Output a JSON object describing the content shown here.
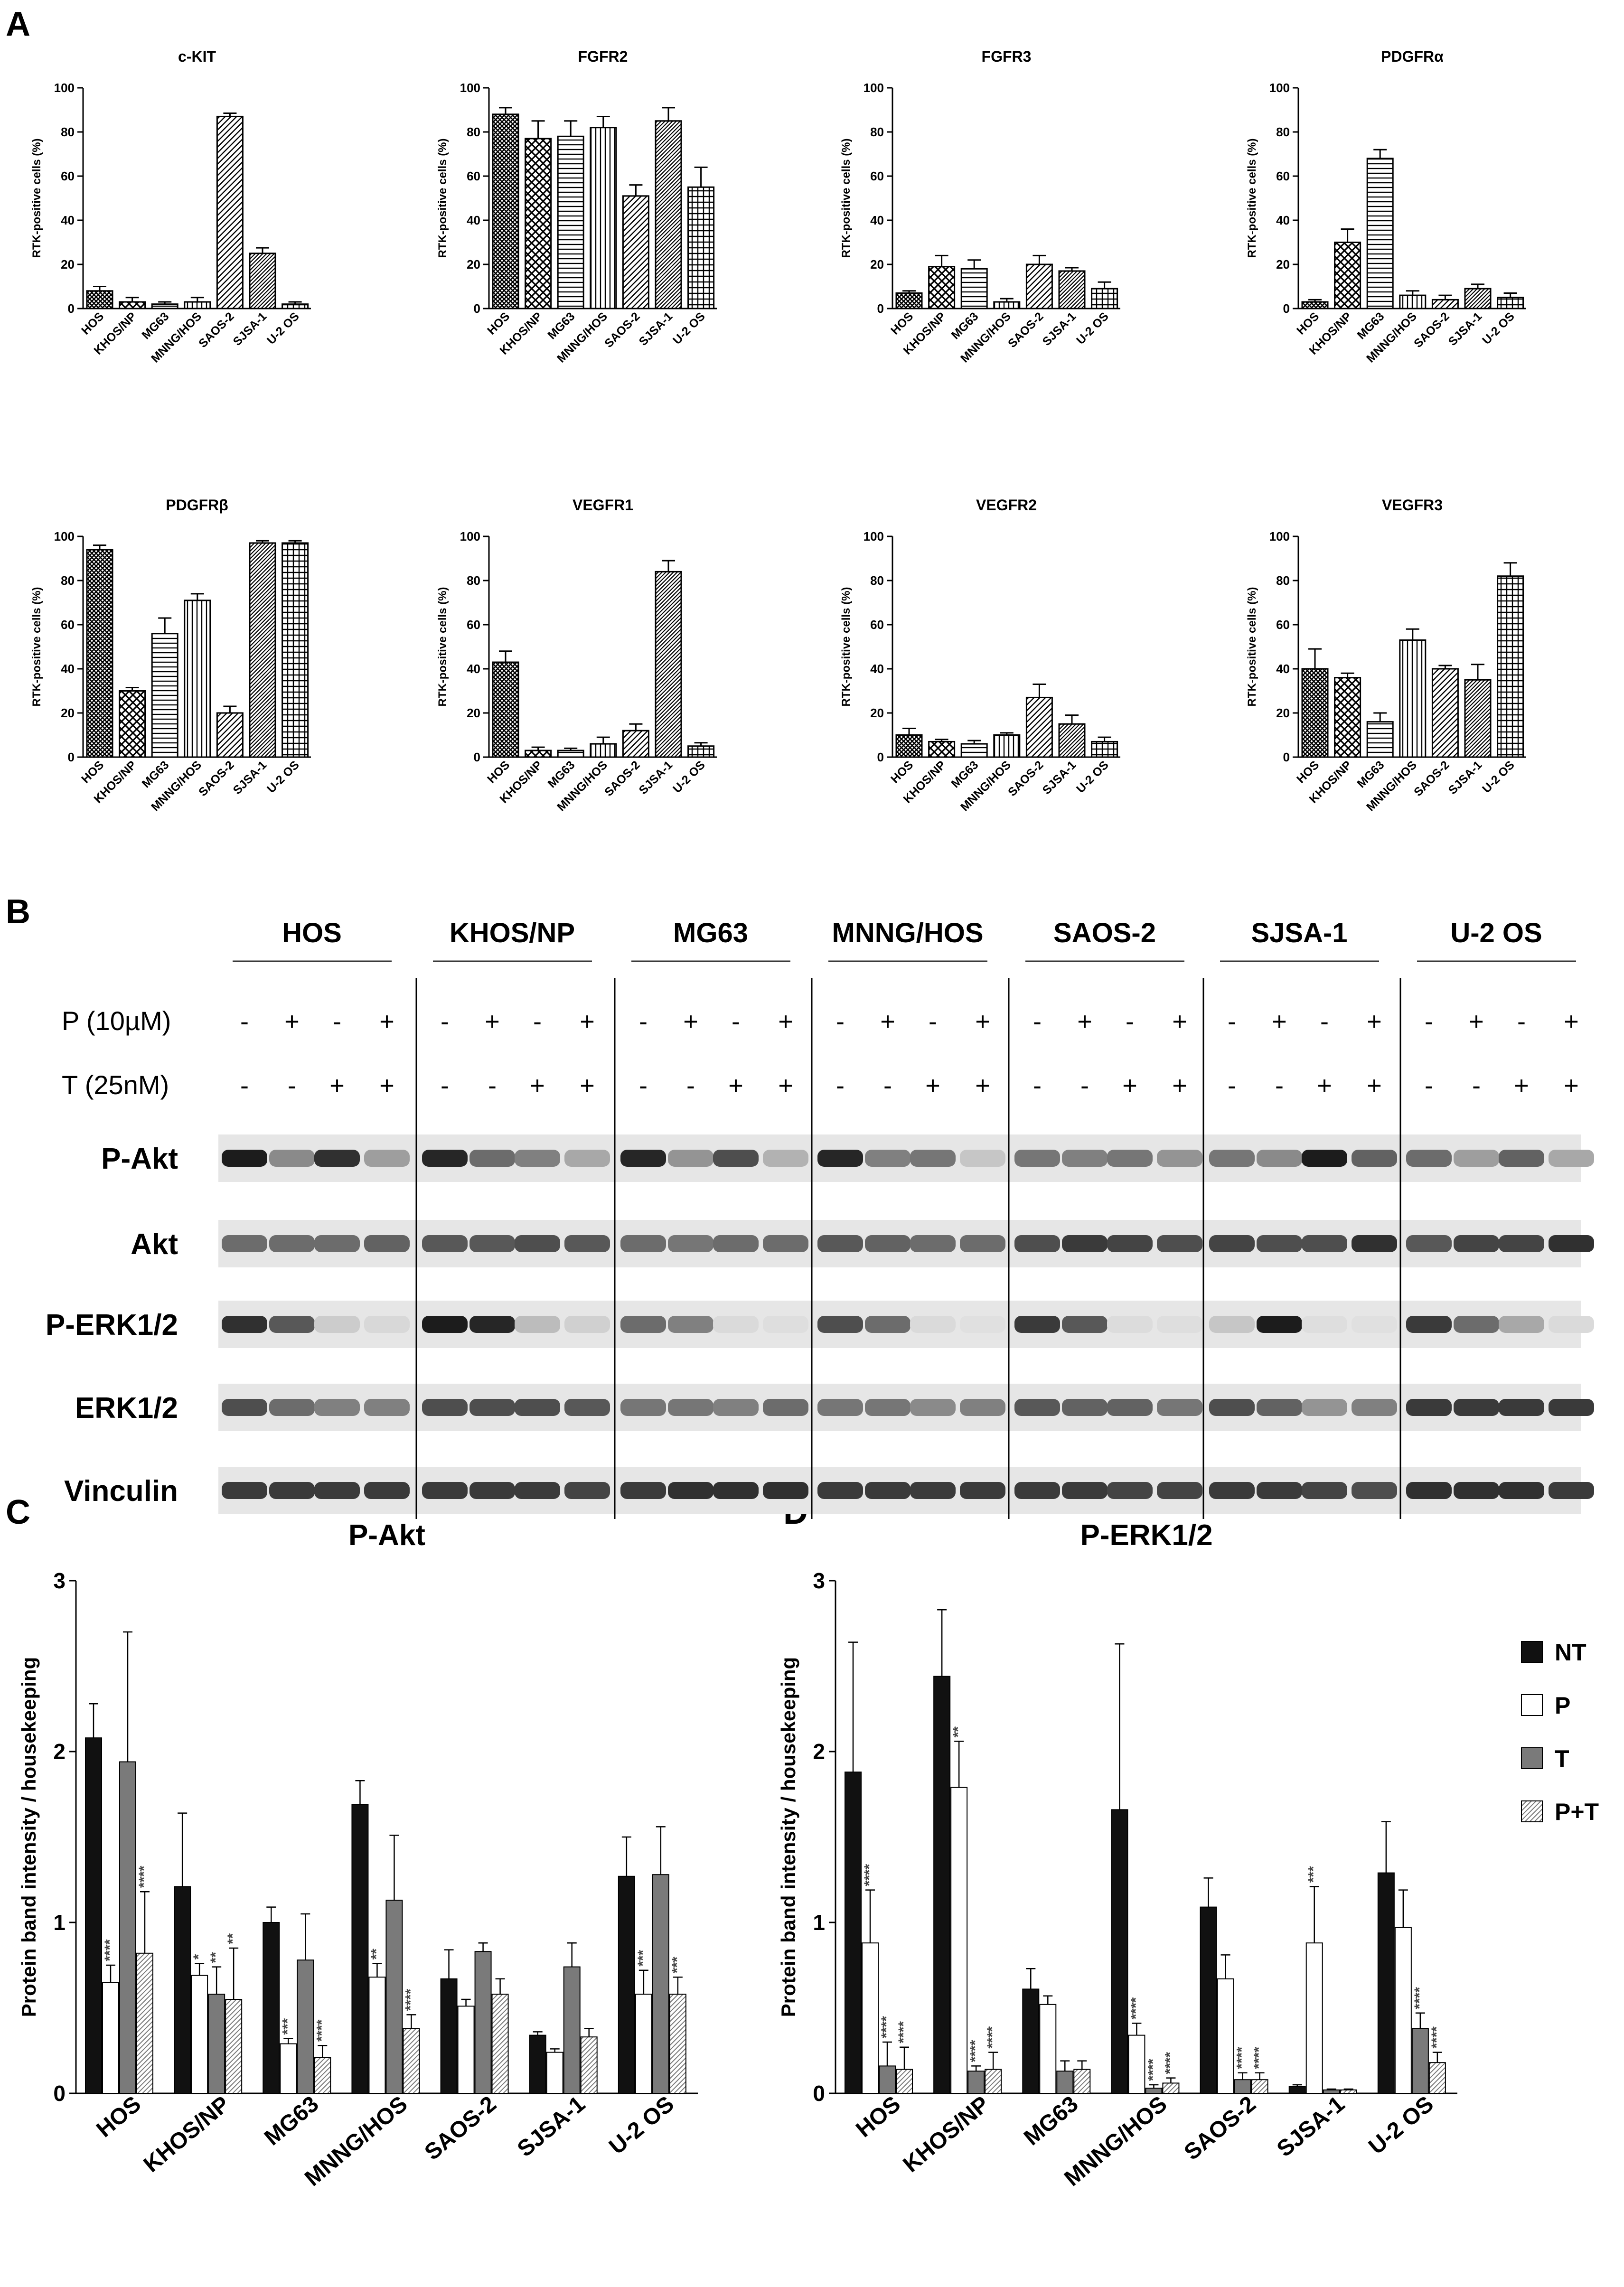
{
  "panel_letters": {
    "a": "A",
    "b": "B",
    "c": "C",
    "d": "D"
  },
  "patterns": {
    "HOS": "crosshatch",
    "KHOS/NP": "crosshatch-wide",
    "MG63": "hlines",
    "MNNG/HOS": "vlines",
    "SAOS-2": "diag",
    "SJSA-1": "diag-dense",
    "U-2 OS": "grid"
  },
  "chart_data": [
    {
      "type": "bar",
      "panel": "A",
      "title": "c-KIT",
      "ylabel": "RTK-positive cells (%)",
      "ylim": [
        0,
        100
      ],
      "yticks": [
        0,
        20,
        40,
        60,
        80,
        100
      ],
      "categories": [
        "HOS",
        "KHOS/NP",
        "MG63",
        "MNNG/HOS",
        "SAOS-2",
        "SJSA-1",
        "U-2 OS"
      ],
      "values": [
        8,
        3,
        2,
        3,
        87,
        25,
        2
      ],
      "errors": [
        2,
        2,
        1,
        2,
        1.5,
        2.5,
        1
      ]
    },
    {
      "type": "bar",
      "panel": "A",
      "title": "FGFR2",
      "ylabel": "RTK-positive cells  (%)",
      "ylim": [
        0,
        100
      ],
      "yticks": [
        0,
        20,
        40,
        60,
        80,
        100
      ],
      "categories": [
        "HOS",
        "KHOS/NP",
        "MG63",
        "MNNG/HOS",
        "SAOS-2",
        "SJSA-1",
        "U-2 OS"
      ],
      "values": [
        88,
        77,
        78,
        82,
        51,
        85,
        55
      ],
      "errors": [
        3,
        8,
        7,
        5,
        5,
        6,
        9
      ]
    },
    {
      "type": "bar",
      "panel": "A",
      "title": "FGFR3",
      "ylabel": "RTK-positive cells (%)",
      "ylim": [
        0,
        100
      ],
      "yticks": [
        0,
        20,
        40,
        60,
        80,
        100
      ],
      "categories": [
        "HOS",
        "KHOS/NP",
        "MG63",
        "MNNG/HOS",
        "SAOS-2",
        "SJSA-1",
        "U-2 OS"
      ],
      "values": [
        7,
        19,
        18,
        3,
        20,
        17,
        9
      ],
      "errors": [
        1,
        5,
        4,
        1.5,
        4,
        1.5,
        3
      ]
    },
    {
      "type": "bar",
      "panel": "A",
      "title": "PDGFRα",
      "ylabel": "RTK-positive cells (%)",
      "ylim": [
        0,
        100
      ],
      "yticks": [
        0,
        20,
        40,
        60,
        80,
        100
      ],
      "categories": [
        "HOS",
        "KHOS/NP",
        "MG63",
        "MNNG/HOS",
        "SAOS-2",
        "SJSA-1",
        "U-2 OS"
      ],
      "values": [
        3,
        30,
        68,
        6,
        4,
        9,
        5
      ],
      "errors": [
        1,
        6,
        4,
        2,
        2,
        2,
        2
      ]
    },
    {
      "type": "bar",
      "panel": "A",
      "title": "PDGFRβ",
      "ylabel": "RTK-positive cells (%)",
      "ylim": [
        0,
        100
      ],
      "yticks": [
        0,
        20,
        40,
        60,
        80,
        100
      ],
      "categories": [
        "HOS",
        "KHOS/NP",
        "MG63",
        "MNNG/HOS",
        "SAOS-2",
        "SJSA-1",
        "U-2 OS"
      ],
      "values": [
        94,
        30,
        56,
        71,
        20,
        97,
        97
      ],
      "errors": [
        2,
        1.5,
        7,
        3,
        3,
        1,
        1
      ]
    },
    {
      "type": "bar",
      "panel": "A",
      "title": "VEGFR1",
      "ylabel": "RTK-positive cells (%)",
      "ylim": [
        0,
        100
      ],
      "yticks": [
        0,
        20,
        40,
        60,
        80,
        100
      ],
      "categories": [
        "HOS",
        "KHOS/NP",
        "MG63",
        "MNNG/HOS",
        "SAOS-2",
        "SJSA-1",
        "U-2 OS"
      ],
      "values": [
        43,
        3,
        3,
        6,
        12,
        84,
        5
      ],
      "errors": [
        5,
        1.5,
        1,
        3,
        3,
        5,
        1.5
      ]
    },
    {
      "type": "bar",
      "panel": "A",
      "title": "VEGFR2",
      "ylabel": "RTK-positive cells (%)",
      "ylim": [
        0,
        100
      ],
      "yticks": [
        0,
        20,
        40,
        60,
        80,
        100
      ],
      "categories": [
        "HOS",
        "KHOS/NP",
        "MG63",
        "MNNG/HOS",
        "SAOS-2",
        "SJSA-1",
        "U-2 OS"
      ],
      "values": [
        10,
        7,
        6,
        10,
        27,
        15,
        7
      ],
      "errors": [
        3,
        1,
        1.5,
        1,
        6,
        4,
        2
      ]
    },
    {
      "type": "bar",
      "panel": "A",
      "title": "VEGFR3",
      "ylabel": "RTK-positive cells (%)",
      "ylim": [
        0,
        100
      ],
      "yticks": [
        0,
        20,
        40,
        60,
        80,
        100
      ],
      "categories": [
        "HOS",
        "KHOS/NP",
        "MG63",
        "MNNG/HOS",
        "SAOS-2",
        "SJSA-1",
        "U-2 OS"
      ],
      "values": [
        40,
        36,
        16,
        53,
        40,
        35,
        82
      ],
      "errors": [
        9,
        2,
        4,
        5,
        1.5,
        7,
        6
      ]
    },
    {
      "type": "bar",
      "panel": "C",
      "title": "P-Akt",
      "ylabel": "Protein band intensity / housekeeping",
      "ylim": [
        0,
        3
      ],
      "yticks": [
        0,
        1,
        2,
        3
      ],
      "categories": [
        "HOS",
        "KHOS/NP",
        "MG63",
        "MNNG/HOS",
        "SAOS-2",
        "SJSA-1",
        "U-2 OS"
      ],
      "series": [
        {
          "name": "NT",
          "values": [
            2.08,
            1.21,
            1.0,
            1.69,
            0.67,
            0.34,
            1.27
          ],
          "errors": [
            0.2,
            0.43,
            0.09,
            0.14,
            0.17,
            0.02,
            0.23
          ]
        },
        {
          "name": "P",
          "values": [
            0.65,
            0.69,
            0.29,
            0.68,
            0.51,
            0.24,
            0.58
          ],
          "errors": [
            0.1,
            0.07,
            0.03,
            0.08,
            0.04,
            0.02,
            0.14
          ]
        },
        {
          "name": "T",
          "values": [
            1.94,
            0.58,
            0.78,
            1.13,
            0.83,
            0.74,
            1.28
          ],
          "errors": [
            0.76,
            0.16,
            0.27,
            0.38,
            0.05,
            0.14,
            0.28
          ]
        },
        {
          "name": "P+T",
          "values": [
            0.82,
            0.55,
            0.21,
            0.38,
            0.58,
            0.33,
            0.58
          ],
          "errors": [
            0.36,
            0.3,
            0.07,
            0.08,
            0.09,
            0.05,
            0.1
          ]
        }
      ],
      "annotations": [
        {
          "category": "HOS",
          "series": "P",
          "text": "****"
        },
        {
          "category": "HOS",
          "series": "P+T",
          "text": "****"
        },
        {
          "category": "KHOS/NP",
          "series": "P",
          "text": "*"
        },
        {
          "category": "KHOS/NP",
          "series": "T",
          "text": "**"
        },
        {
          "category": "KHOS/NP",
          "series": "P+T",
          "text": "**"
        },
        {
          "category": "MG63",
          "series": "P",
          "text": "***"
        },
        {
          "category": "MG63",
          "series": "P+T",
          "text": "****"
        },
        {
          "category": "MNNG/HOS",
          "series": "P",
          "text": "**"
        },
        {
          "category": "MNNG/HOS",
          "series": "P+T",
          "text": "****"
        },
        {
          "category": "U-2 OS",
          "series": "P",
          "text": "***"
        },
        {
          "category": "U-2 OS",
          "series": "P+T",
          "text": "***"
        }
      ]
    },
    {
      "type": "bar",
      "panel": "D",
      "title": "P-ERK1/2",
      "ylabel": "Protein band intensity / housekeeping",
      "ylim": [
        0,
        3
      ],
      "yticks": [
        0,
        1,
        2,
        3
      ],
      "categories": [
        "HOS",
        "KHOS/NP",
        "MG63",
        "MNNG/HOS",
        "SAOS-2",
        "SJSA-1",
        "U-2 OS"
      ],
      "legend": {
        "position": "right"
      },
      "series": [
        {
          "name": "NT",
          "values": [
            1.88,
            2.44,
            0.61,
            1.66,
            1.09,
            0.04,
            1.29
          ],
          "errors": [
            0.76,
            0.39,
            0.12,
            0.97,
            0.17,
            0.01,
            0.3
          ]
        },
        {
          "name": "P",
          "values": [
            0.88,
            1.79,
            0.52,
            0.34,
            0.67,
            0.88,
            0.97
          ],
          "errors": [
            0.31,
            0.27,
            0.05,
            0.07,
            0.14,
            0.33,
            0.22
          ]
        },
        {
          "name": "T",
          "values": [
            0.16,
            0.13,
            0.13,
            0.03,
            0.08,
            0.02,
            0.38
          ],
          "errors": [
            0.14,
            0.03,
            0.06,
            0.02,
            0.04,
            0.005,
            0.09
          ]
        },
        {
          "name": "P+T",
          "values": [
            0.14,
            0.14,
            0.14,
            0.06,
            0.08,
            0.02,
            0.18
          ],
          "errors": [
            0.13,
            0.1,
            0.05,
            0.03,
            0.04,
            0.005,
            0.06
          ]
        }
      ],
      "annotations": [
        {
          "category": "HOS",
          "series": "P",
          "text": "****"
        },
        {
          "category": "HOS",
          "series": "T",
          "text": "****"
        },
        {
          "category": "HOS",
          "series": "P+T",
          "text": "****"
        },
        {
          "category": "KHOS/NP",
          "series": "P",
          "text": "**"
        },
        {
          "category": "KHOS/NP",
          "series": "T",
          "text": "****"
        },
        {
          "category": "KHOS/NP",
          "series": "P+T",
          "text": "****"
        },
        {
          "category": "MNNG/HOS",
          "series": "P",
          "text": "****"
        },
        {
          "category": "MNNG/HOS",
          "series": "T",
          "text": "****"
        },
        {
          "category": "MNNG/HOS",
          "series": "P+T",
          "text": "****"
        },
        {
          "category": "SAOS-2",
          "series": "T",
          "text": "****"
        },
        {
          "category": "SAOS-2",
          "series": "P+T",
          "text": "****"
        },
        {
          "category": "SJSA-1",
          "series": "P",
          "text": "***"
        },
        {
          "category": "U-2 OS",
          "series": "T",
          "text": "****"
        },
        {
          "category": "U-2 OS",
          "series": "P+T",
          "text": "****"
        }
      ]
    }
  ],
  "western_blot": {
    "cell_lines": [
      "HOS",
      "KHOS/NP",
      "MG63",
      "MNNG/HOS",
      "SAOS-2",
      "SJSA-1",
      "U-2 OS"
    ],
    "treatment_rows": [
      {
        "label": "P (10µM)",
        "signs": [
          "-",
          "+",
          "-",
          "+"
        ]
      },
      {
        "label": "T (25nM)",
        "signs": [
          "-",
          "-",
          "+",
          "+"
        ]
      }
    ],
    "proteins": [
      {
        "label": "P-Akt",
        "intensities": [
          [
            1.0,
            0.45,
            0.9,
            0.35
          ],
          [
            0.95,
            0.6,
            0.5,
            0.3
          ],
          [
            0.95,
            0.4,
            0.75,
            0.25
          ],
          [
            0.95,
            0.5,
            0.55,
            0.15
          ],
          [
            0.55,
            0.5,
            0.55,
            0.4
          ],
          [
            0.55,
            0.45,
            1.0,
            0.65
          ],
          [
            0.6,
            0.35,
            0.65,
            0.3
          ]
        ]
      },
      {
        "label": "Akt",
        "intensities": [
          [
            0.6,
            0.6,
            0.6,
            0.65
          ],
          [
            0.7,
            0.7,
            0.75,
            0.7
          ],
          [
            0.6,
            0.55,
            0.6,
            0.6
          ],
          [
            0.7,
            0.65,
            0.6,
            0.6
          ],
          [
            0.75,
            0.85,
            0.8,
            0.75
          ],
          [
            0.8,
            0.75,
            0.75,
            0.9
          ],
          [
            0.7,
            0.8,
            0.8,
            0.9
          ]
        ]
      },
      {
        "label": "P-ERK1/2",
        "intensities": [
          [
            0.9,
            0.7,
            0.12,
            0.06
          ],
          [
            1.0,
            0.95,
            0.2,
            0.1
          ],
          [
            0.6,
            0.5,
            0.05,
            0.03
          ],
          [
            0.75,
            0.6,
            0.05,
            0.02
          ],
          [
            0.85,
            0.7,
            0.04,
            0.03
          ],
          [
            0.15,
            1.0,
            0.03,
            0.02
          ],
          [
            0.85,
            0.6,
            0.3,
            0.05
          ]
        ]
      },
      {
        "label": "ERK1/2",
        "intensities": [
          [
            0.75,
            0.6,
            0.5,
            0.5
          ],
          [
            0.75,
            0.75,
            0.75,
            0.7
          ],
          [
            0.55,
            0.55,
            0.5,
            0.6
          ],
          [
            0.55,
            0.55,
            0.45,
            0.5
          ],
          [
            0.7,
            0.65,
            0.65,
            0.55
          ],
          [
            0.75,
            0.65,
            0.4,
            0.5
          ],
          [
            0.85,
            0.85,
            0.85,
            0.85
          ]
        ]
      },
      {
        "label": "Vinculin",
        "intensities": [
          [
            0.85,
            0.85,
            0.85,
            0.85
          ],
          [
            0.85,
            0.85,
            0.85,
            0.8
          ],
          [
            0.85,
            0.9,
            0.9,
            0.9
          ],
          [
            0.85,
            0.85,
            0.85,
            0.85
          ],
          [
            0.85,
            0.85,
            0.8,
            0.8
          ],
          [
            0.85,
            0.85,
            0.8,
            0.75
          ],
          [
            0.9,
            0.9,
            0.9,
            0.85
          ]
        ]
      }
    ]
  }
}
